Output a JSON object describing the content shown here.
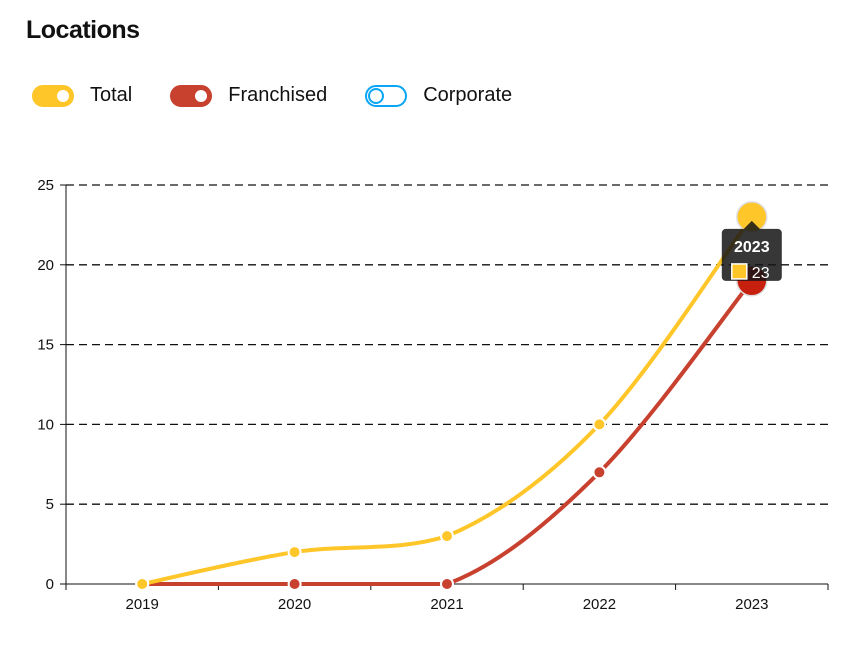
{
  "title": "Locations",
  "legend": [
    {
      "label": "Total",
      "color": "#FFC629",
      "on": true
    },
    {
      "label": "Franchised",
      "color": "#C8402E",
      "on": true
    },
    {
      "label": "Corporate",
      "color": "#0AA6F5",
      "on": false
    }
  ],
  "tooltip": {
    "title": "2023",
    "value": "23"
  },
  "chart_data": {
    "type": "line",
    "categories": [
      "2019",
      "2020",
      "2021",
      "2022",
      "2023"
    ],
    "series": [
      {
        "name": "Total",
        "values": [
          0,
          2,
          3,
          10,
          23
        ],
        "color": "#FFC629"
      },
      {
        "name": "Franchised",
        "values": [
          0,
          0,
          0,
          7,
          19
        ],
        "color": "#C8402E"
      }
    ],
    "yticks": [
      "0",
      "5",
      "10",
      "15",
      "20",
      "25"
    ],
    "ylim": [
      0,
      25
    ],
    "grid": true
  }
}
